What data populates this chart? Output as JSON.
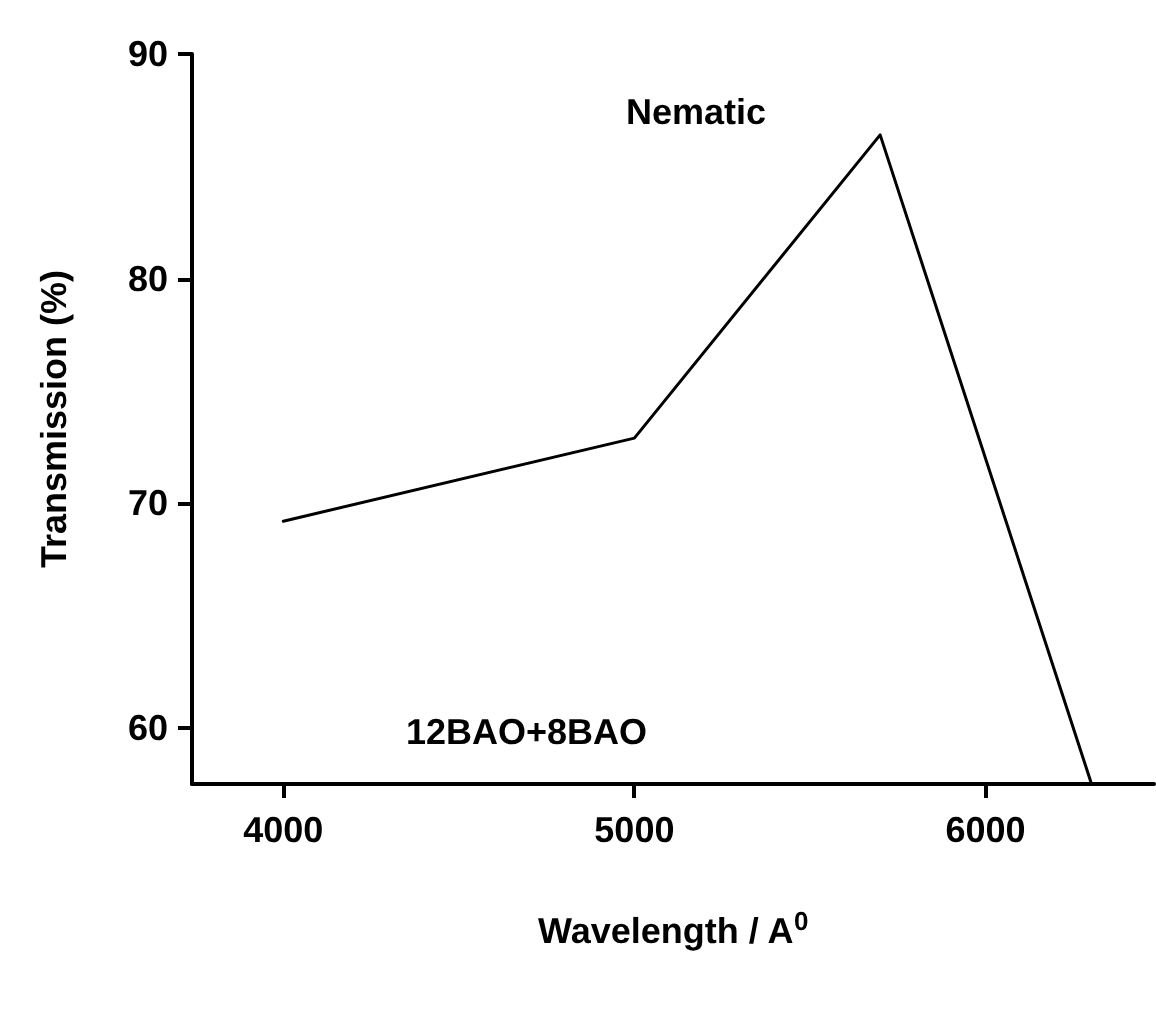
{
  "chart_data": {
    "type": "line",
    "xlabel": "Wavelength / A$^{0}$",
    "ylabel": "Transmission (%)",
    "x": [
      4000,
      5000,
      5700,
      6300
    ],
    "series": [
      {
        "name": "12BAO+8BAO",
        "color": "#000000",
        "values": [
          69.2,
          72.9,
          86.4,
          57.6
        ]
      }
    ],
    "xlim": [
      3740,
      6480
    ],
    "xticks": [
      4000,
      5000,
      6000
    ],
    "ylim": [
      57.5,
      90
    ],
    "yticks": [
      60,
      70,
      80,
      90
    ],
    "annotations": [
      "Nematic"
    ],
    "grid": false,
    "legend": false,
    "marker": "none",
    "line_style": "solid"
  }
}
